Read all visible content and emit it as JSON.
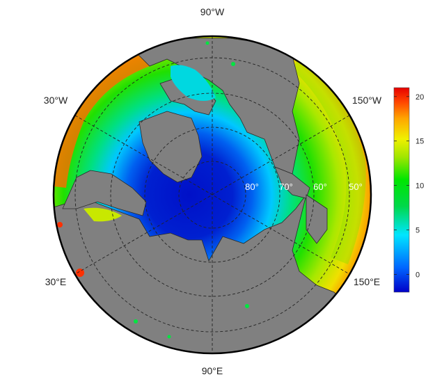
{
  "map": {
    "projection": "north-polar-stereographic",
    "land_color": "#808080",
    "longitude_labels": {
      "top": "90°W",
      "bottom": "90°E",
      "upper_left": "30°W",
      "lower_left": "30°E",
      "upper_right": "150°W",
      "lower_right": "150°E"
    },
    "latitude_labels": [
      "80°",
      "70°",
      "60°",
      "50°"
    ],
    "graticule": {
      "style": "dashed",
      "color": "#222222"
    }
  },
  "colorbar": {
    "ticks": [
      "20",
      "15",
      "10",
      "5",
      "0"
    ],
    "tick_values": [
      20,
      15,
      10,
      5,
      0
    ],
    "range": [
      -2,
      21
    ],
    "colors": [
      "#0000c8",
      "#0066ff",
      "#00e5ff",
      "#00d84a",
      "#00e600",
      "#a0e600",
      "#f0f000",
      "#ffa500",
      "#ff4500",
      "#e60000"
    ]
  }
}
